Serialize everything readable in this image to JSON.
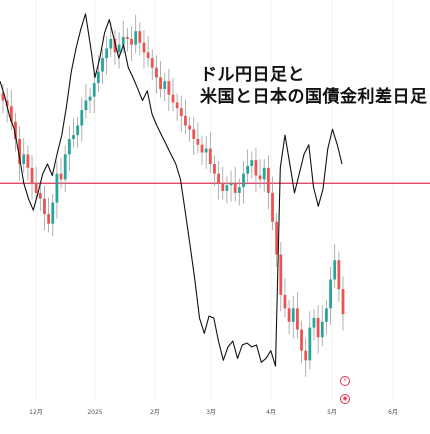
{
  "title_lines": [
    "ドル円日足と",
    "米国と日本の国債金利差日足"
  ],
  "colors": {
    "up": "#26a69a",
    "down": "#ef5350",
    "spread_line": "#111111",
    "hline": "#e0315a",
    "grid": "#f0f0f0",
    "wick": "#9e9e9e"
  },
  "markers": [
    {
      "name": "event-marker-1",
      "label": "⚡",
      "icon": "lightning-icon"
    },
    {
      "name": "event-marker-2",
      "label": "◉",
      "icon": "dividend-icon"
    }
  ],
  "chart_data": {
    "type": "line",
    "title": "ドル円日足と 米国と日本の国債金利差日足",
    "x_ticks": [
      "12月",
      "2025",
      "2月",
      "3月",
      "4月",
      "5月",
      "6月"
    ],
    "y_range": [
      139,
      159
    ],
    "horizontal_line": 150,
    "candles_close": [
      154.3,
      154.0,
      153.2,
      152.3,
      151.0,
      151.5,
      150.8,
      150.0,
      149.5,
      149.2,
      148.4,
      147.9,
      149.0,
      150.5,
      150.2,
      151.5,
      152.3,
      152.5,
      153.0,
      153.8,
      154.3,
      154.5,
      155.2,
      155.8,
      156.5,
      157.0,
      157.5,
      156.8,
      157.2,
      157.6,
      157.5,
      157.2,
      157.9,
      157.3,
      156.8,
      156.5,
      156.0,
      155.5,
      154.9,
      155.3,
      154.6,
      154.2,
      153.9,
      153.5,
      153.0,
      152.8,
      152.3,
      152.0,
      151.6,
      151.8,
      151.0,
      150.5,
      150.0,
      149.6,
      149.9,
      150.0,
      149.5,
      149.8,
      150.5,
      150.9,
      151.2,
      150.4,
      150.2,
      150.8,
      149.5,
      148.0,
      146.3,
      144.2,
      143.5,
      142.8,
      143.5,
      142.4,
      141.3,
      140.8,
      142.5,
      143.0,
      142.0,
      142.8,
      143.5,
      145.0,
      146.0,
      144.5,
      143.2
    ],
    "series": [
      {
        "name": "",
        "values": [
          155.3,
          154.5,
          153.5,
          152.8,
          151.5,
          150.0,
          149.2,
          148.6,
          149.5,
          150.5,
          151.0,
          150.4,
          151.5,
          152.5,
          154.0,
          155.8,
          157.0,
          158.0,
          158.8,
          157.2,
          155.5,
          156.5,
          157.8,
          158.5,
          157.5,
          156.5,
          157.2,
          156.0,
          155.5,
          154.9,
          154.3,
          154.8,
          153.6,
          153.0,
          152.5,
          152.0,
          151.5,
          151.0,
          150.2,
          148.5,
          146.8,
          145.0,
          143.0,
          142.2,
          143.1,
          143.0,
          141.8,
          140.8,
          141.5,
          141.8,
          140.9,
          141.6,
          141.7,
          141.5,
          141.6,
          140.7,
          140.9,
          141.3,
          140.5,
          150.8,
          152.5,
          151.0,
          149.5,
          150.5,
          151.5,
          152.0,
          149.8,
          148.8,
          149.7,
          151.8,
          152.8,
          152.0,
          151.0
        ]
      }
    ],
    "grid": false,
    "legend": "none"
  }
}
